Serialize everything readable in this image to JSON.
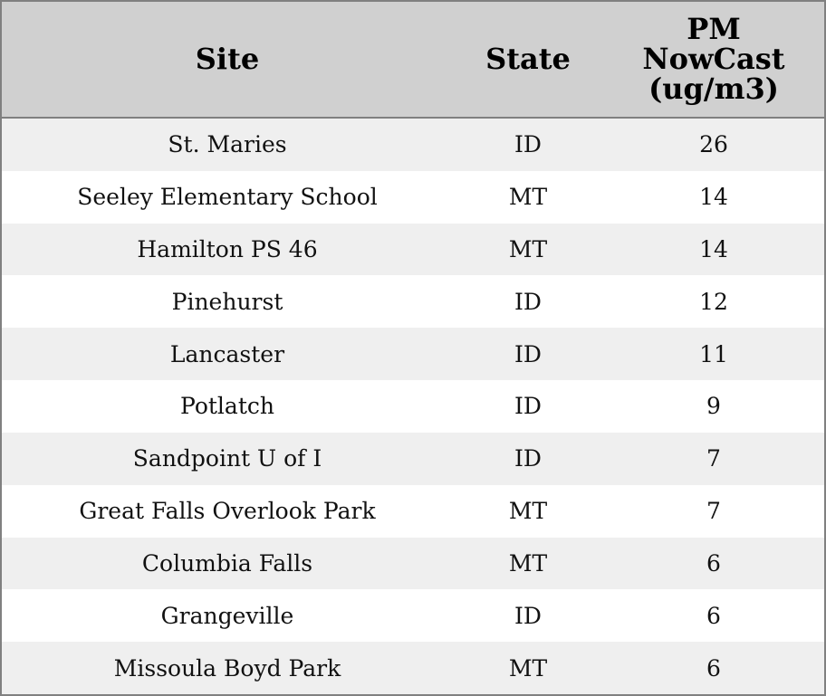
{
  "table": {
    "header": [
      "Site",
      "State",
      "PM\nNowCast\n(ug/m3)"
    ],
    "rows": [
      [
        "St. Maries",
        "ID",
        26
      ],
      [
        "Seeley Elementary School",
        "MT",
        14
      ],
      [
        "Hamilton PS 46",
        "MT",
        14
      ],
      [
        "Pinehurst",
        "ID",
        12
      ],
      [
        "Lancaster",
        "ID",
        11
      ],
      [
        "Potlatch",
        "ID",
        9
      ],
      [
        "Sandpoint U of I",
        "ID",
        7
      ],
      [
        "Great Falls Overlook Park",
        "MT",
        7
      ],
      [
        "Columbia Falls",
        "MT",
        6
      ],
      [
        "Grangeville",
        "ID",
        6
      ],
      [
        "Missoula Boyd Park",
        "MT",
        6
      ]
    ]
  }
}
